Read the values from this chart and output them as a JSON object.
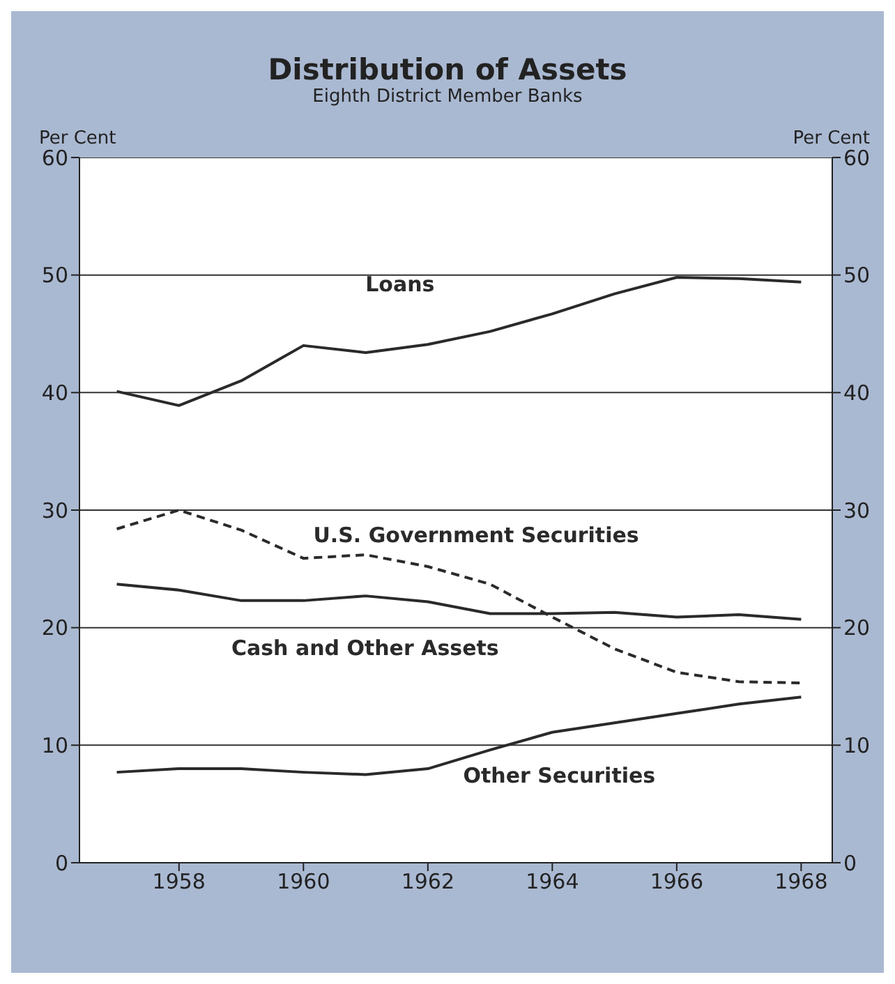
{
  "chart_data": {
    "type": "line",
    "title": "Distribution of Assets",
    "subtitle": "Eighth District Member Banks",
    "ylabel": "Per Cent",
    "y2label": "Per Cent",
    "x": [
      1957,
      1958,
      1959,
      1960,
      1961,
      1962,
      1963,
      1964,
      1965,
      1966,
      1967,
      1968
    ],
    "xlim": [
      1956.4,
      1968.5
    ],
    "xticks": [
      1958,
      1960,
      1962,
      1964,
      1966,
      1968
    ],
    "ylim": [
      0,
      60
    ],
    "yticks": [
      0,
      10,
      20,
      30,
      40,
      50,
      60
    ],
    "y2lim": [
      0,
      60
    ],
    "y2ticks": [
      0,
      10,
      20,
      30,
      40,
      50,
      60
    ],
    "grid": "y",
    "legend": false,
    "marker": "none",
    "series": [
      {
        "name": "Loans",
        "color": "#2a2a2a",
        "line_style": "solid",
        "values": [
          40.1,
          38.9,
          41.0,
          44.0,
          43.4,
          44.1,
          45.2,
          46.7,
          48.4,
          49.8,
          49.7,
          49.4
        ]
      },
      {
        "name": "U.S. Government Securities",
        "color": "#2a2a2a",
        "line_style": "dashed",
        "values": [
          28.4,
          30.0,
          28.3,
          25.9,
          26.2,
          25.2,
          23.7,
          20.9,
          18.2,
          16.2,
          15.4,
          15.3
        ]
      },
      {
        "name": "Cash and Other Assets",
        "color": "#2a2a2a",
        "line_style": "solid",
        "values": [
          23.7,
          23.2,
          22.3,
          22.3,
          22.7,
          22.2,
          21.2,
          21.2,
          21.3,
          20.9,
          21.1,
          20.7
        ]
      },
      {
        "name": "Other Securities",
        "color": "#2a2a2a",
        "line_style": "solid",
        "values": [
          7.7,
          8.0,
          8.0,
          7.7,
          7.5,
          8.0,
          9.6,
          11.1,
          11.9,
          12.7,
          13.5,
          14.1
        ]
      }
    ]
  }
}
